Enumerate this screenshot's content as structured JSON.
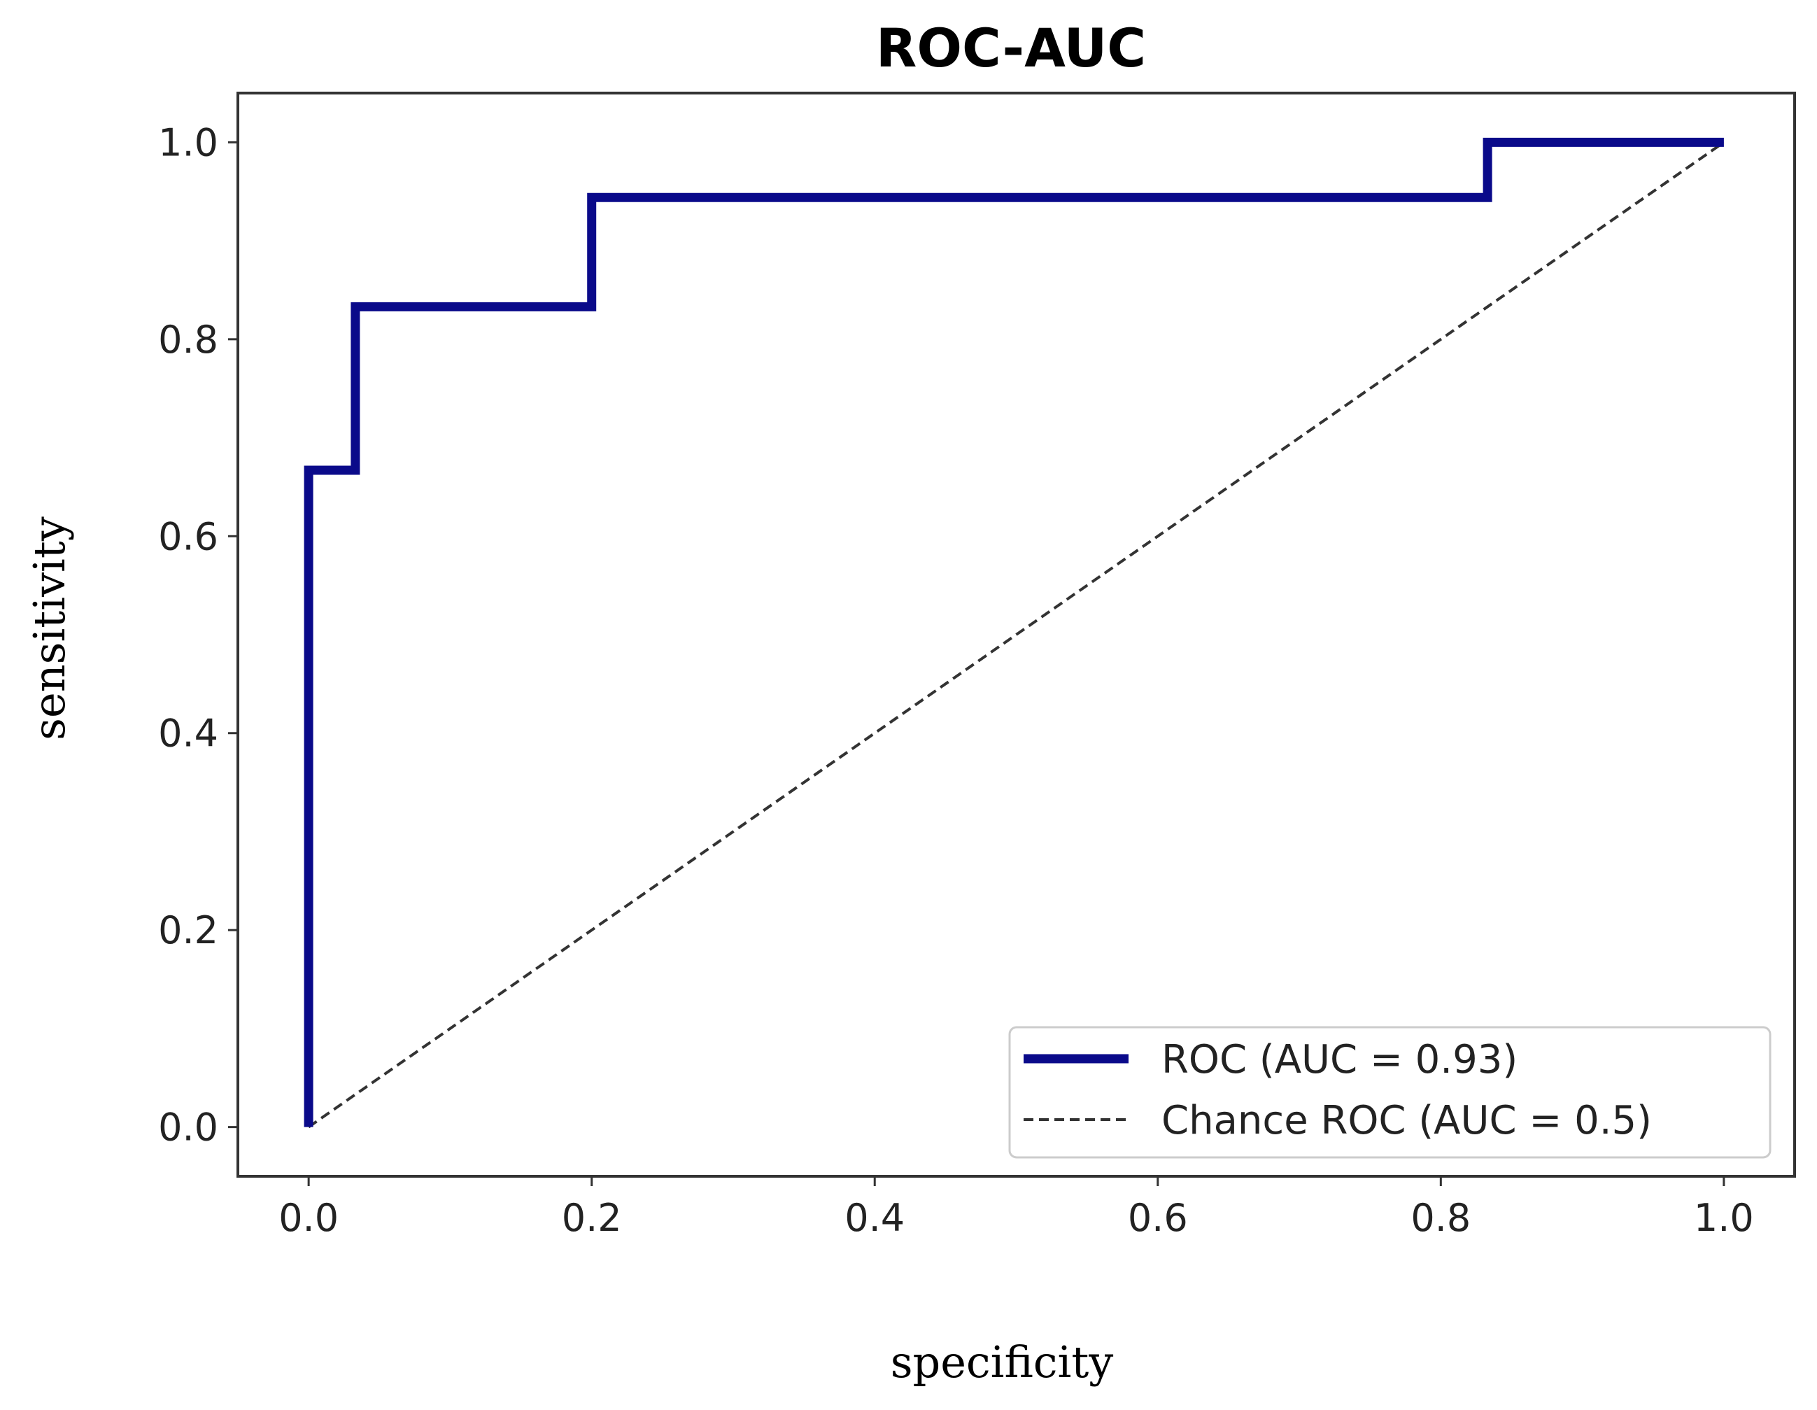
{
  "chart_data": {
    "type": "line",
    "title": "ROC-AUC",
    "xlabel": "specificity",
    "ylabel": "sensitivity",
    "xlim": [
      -0.05,
      1.05
    ],
    "ylim": [
      -0.05,
      1.05
    ],
    "xticks": [
      "0.0",
      "0.2",
      "0.4",
      "0.6",
      "0.8",
      "1.0"
    ],
    "yticks": [
      "0.0",
      "0.2",
      "0.4",
      "0.6",
      "0.8",
      "1.0"
    ],
    "grid": false,
    "legend_position": "lower-right",
    "series": [
      {
        "name": "ROC (AUC = 0.93)",
        "color": "#0a0a8a",
        "style": "solid",
        "x": [
          0.0,
          0.0,
          0.033,
          0.033,
          0.2,
          0.2,
          0.833,
          0.833,
          1.0
        ],
        "y": [
          0.0,
          0.667,
          0.667,
          0.833,
          0.833,
          0.944,
          0.944,
          1.0,
          1.0
        ]
      },
      {
        "name": "Chance ROC (AUC = 0.5)",
        "color": "#333333",
        "style": "dashed",
        "x": [
          0.0,
          1.0
        ],
        "y": [
          0.0,
          1.0
        ]
      }
    ]
  }
}
